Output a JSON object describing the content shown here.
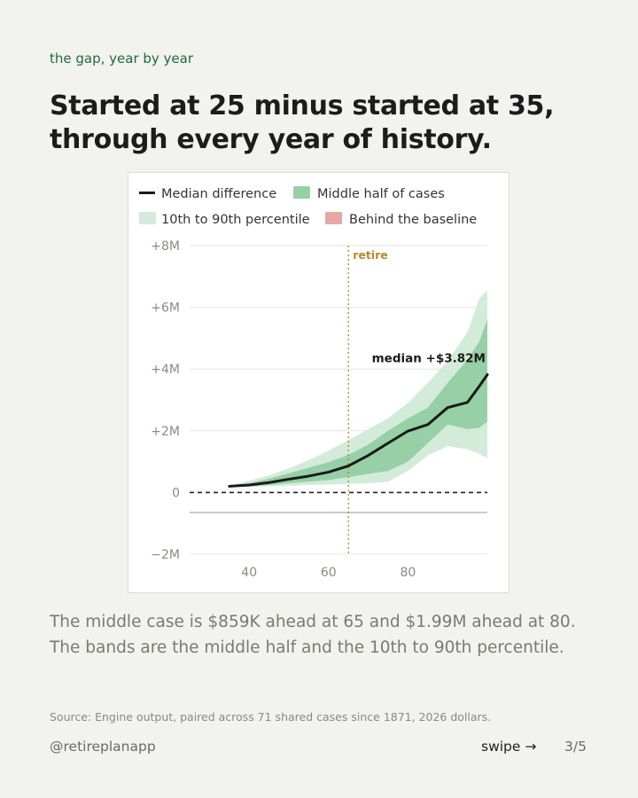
{
  "eyebrow": "the gap, year by year",
  "headline": "Started at 25 minus started at 35, through every year of history.",
  "caption": "The middle case is $859K ahead at 65 and $1.99M ahead at 80. The bands are the middle half and the 10th to 90th percentile.",
  "source": "Source: Engine output, paired across 71 shared cases since 1871, 2026 dollars.",
  "footer": {
    "handle": "@retireplanapp",
    "swipe": "swipe →",
    "page": "3/5"
  },
  "colors": {
    "median": "#1a1a1a",
    "iqr_band": "#97cfa6",
    "p10_90_band": "#d3ebd9",
    "behind": "#e6a7a7",
    "retire_line": "#b8862b"
  },
  "chart_data": {
    "type": "area",
    "legend": {
      "placement": "top",
      "entries": [
        "Median difference",
        "Middle half of cases",
        "10th to 90th percentile",
        "Behind the baseline"
      ]
    },
    "x_ticks": [
      "40",
      "60",
      "80"
    ],
    "x_range": [
      25,
      100
    ],
    "y_ticks": [
      "+8M",
      "+6M",
      "+4M",
      "+2M",
      "0",
      "−2M"
    ],
    "y_tick_values": [
      8,
      6,
      4,
      2,
      0,
      -2
    ],
    "y_range": [
      -2,
      8
    ],
    "y_unit": "millions of dollars",
    "grid": true,
    "retire_marker": {
      "x": 65,
      "label": "retire"
    },
    "median_label": {
      "x": 100,
      "y": 3.82,
      "text": "median +$3.82M"
    },
    "x": [
      35,
      40,
      45,
      50,
      55,
      60,
      65,
      70,
      75,
      80,
      85,
      90,
      95,
      98,
      100
    ],
    "series": [
      {
        "name": "Median difference",
        "values": [
          0.2,
          0.24,
          0.32,
          0.43,
          0.53,
          0.66,
          0.86,
          1.2,
          1.6,
          1.99,
          2.2,
          2.75,
          2.92,
          3.45,
          3.82
        ]
      },
      {
        "name": "p25",
        "values": [
          0.19,
          0.2,
          0.24,
          0.3,
          0.35,
          0.4,
          0.5,
          0.6,
          0.7,
          1.0,
          1.6,
          2.2,
          2.05,
          2.1,
          2.3
        ]
      },
      {
        "name": "p75",
        "values": [
          0.21,
          0.3,
          0.45,
          0.62,
          0.8,
          0.98,
          1.22,
          1.55,
          2.0,
          2.4,
          2.75,
          3.55,
          4.3,
          4.9,
          5.6
        ]
      },
      {
        "name": "p10",
        "values": [
          0.19,
          0.18,
          0.2,
          0.22,
          0.24,
          0.26,
          0.28,
          0.3,
          0.35,
          0.7,
          1.2,
          1.5,
          1.4,
          1.25,
          1.1
        ]
      },
      {
        "name": "p90",
        "values": [
          0.22,
          0.38,
          0.55,
          0.78,
          1.05,
          1.35,
          1.7,
          2.05,
          2.4,
          2.9,
          3.55,
          4.25,
          5.2,
          6.3,
          6.55
        ]
      }
    ]
  }
}
